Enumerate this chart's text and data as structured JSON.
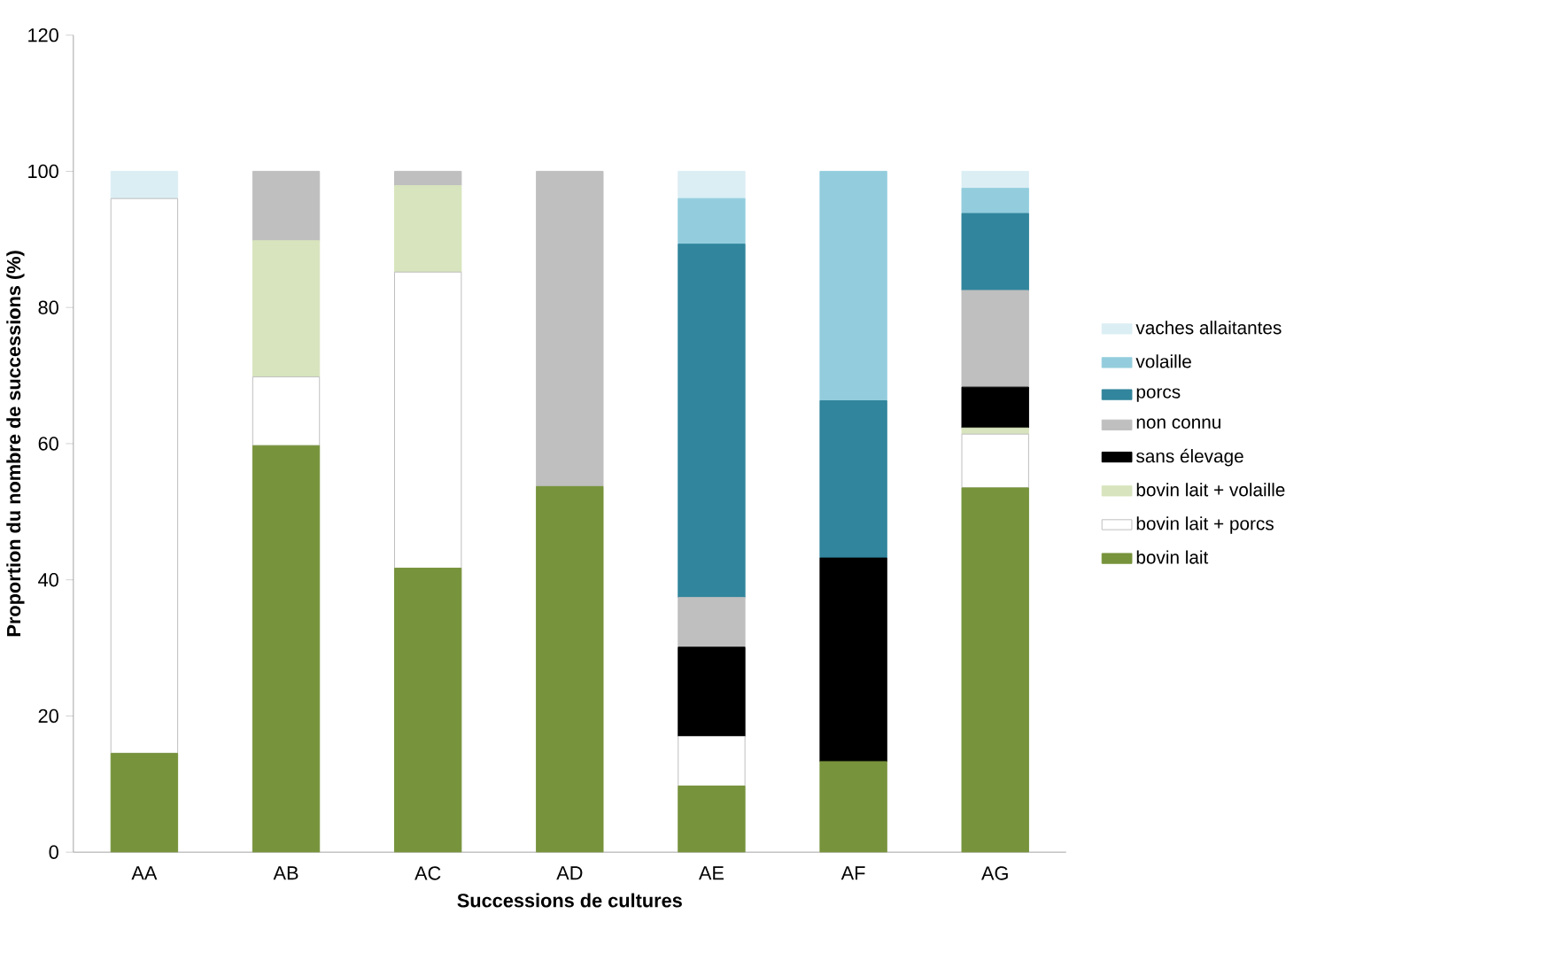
{
  "chart_data": {
    "type": "bar",
    "stacked": true,
    "xlabel": "Successions de cultures",
    "ylabel": "Proportion du nombre de successions (%)",
    "categories": [
      "AA",
      "AB",
      "AC",
      "AD",
      "AE",
      "AF",
      "AG"
    ],
    "ylim": [
      0,
      120
    ],
    "yticks": [
      0,
      20,
      40,
      60,
      80,
      100,
      120
    ],
    "grid": false,
    "legend": "right",
    "series": [
      {
        "name": "bovin lait",
        "color": "#77933c",
        "values": [
          14.5,
          59.7,
          41.7,
          53.7,
          9.7,
          13.3,
          53.5
        ]
      },
      {
        "name": "bovin lait + porcs",
        "color": "#ffffff",
        "values": [
          81.5,
          10.1,
          43.5,
          0,
          7.3,
          0,
          7.9
        ]
      },
      {
        "name": "bovin lait + volaille",
        "color": "#d7e4bd",
        "values": [
          0,
          20.0,
          12.7,
          0,
          0,
          0,
          0.9
        ]
      },
      {
        "name": "sans élevage",
        "color": "#000000",
        "values": [
          0,
          0,
          0,
          0,
          13.1,
          29.9,
          6.0
        ]
      },
      {
        "name": "non connu",
        "color": "#bfbfbf",
        "values": [
          0,
          10.2,
          2.1,
          46.3,
          7.3,
          0,
          14.2
        ]
      },
      {
        "name": "porcs",
        "color": "#31859c",
        "values": [
          0,
          0,
          0,
          0,
          51.9,
          23.1,
          11.3
        ]
      },
      {
        "name": "volaille",
        "color": "#93cddd",
        "values": [
          0,
          0,
          0,
          0,
          6.7,
          33.7,
          3.7
        ]
      },
      {
        "name": "vaches allaitantes",
        "color": "#dbeef4",
        "values": [
          4.0,
          0,
          0,
          0,
          4.0,
          0,
          2.5
        ]
      }
    ]
  }
}
